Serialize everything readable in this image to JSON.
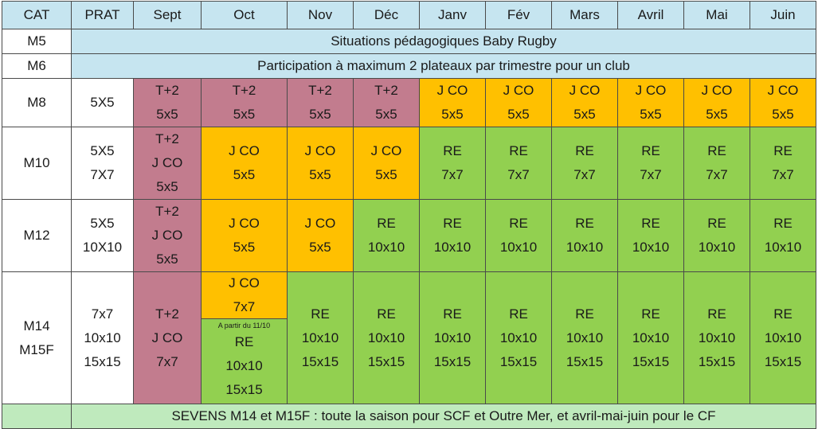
{
  "headers": [
    "CAT",
    "PRAT",
    "Sept",
    "Oct",
    "Nov",
    "Déc",
    "Janv",
    "Fév",
    "Mars",
    "Avril",
    "Mai",
    "Juin"
  ],
  "rows": {
    "m5": {
      "cat": "M5",
      "span_text": "Situations pédagogiques Baby Rugby"
    },
    "m6": {
      "cat": "M6",
      "span_text": "Participation à maximum 2 plateaux par trimestre pour un club"
    },
    "m8": {
      "cat": "M8",
      "prat": [
        "5X5"
      ],
      "months": [
        [
          "T+2",
          "5x5"
        ],
        [
          "T+2",
          "5x5"
        ],
        [
          "T+2",
          "5x5"
        ],
        [
          "T+2",
          "5x5"
        ],
        [
          "J CO",
          "5x5"
        ],
        [
          "J CO",
          "5x5"
        ],
        [
          "J CO",
          "5x5"
        ],
        [
          "J CO",
          "5x5"
        ],
        [
          "J CO",
          "5x5"
        ],
        [
          "J CO",
          "5x5"
        ]
      ]
    },
    "m10": {
      "cat": "M10",
      "prat": [
        "5X5",
        "7X7"
      ],
      "months": [
        [
          "T+2",
          "J CO",
          "5x5"
        ],
        [
          "J CO",
          "5x5"
        ],
        [
          "J CO",
          "5x5"
        ],
        [
          "J CO",
          "5x5"
        ],
        [
          "RE",
          "7x7"
        ],
        [
          "RE",
          "7x7"
        ],
        [
          "RE",
          "7x7"
        ],
        [
          "RE",
          "7x7"
        ],
        [
          "RE",
          "7x7"
        ],
        [
          "RE",
          "7x7"
        ]
      ]
    },
    "m12": {
      "cat": "M12",
      "prat": [
        "5X5",
        "10X10"
      ],
      "months": [
        [
          "T+2",
          "J CO",
          "5x5"
        ],
        [
          "J CO",
          "5x5"
        ],
        [
          "J CO",
          "5x5"
        ],
        [
          "RE",
          "10x10"
        ],
        [
          "RE",
          "10x10"
        ],
        [
          "RE",
          "10x10"
        ],
        [
          "RE",
          "10x10"
        ],
        [
          "RE",
          "10x10"
        ],
        [
          "RE",
          "10x10"
        ],
        [
          "RE",
          "10x10"
        ]
      ]
    },
    "m14": {
      "cat": [
        "M14",
        "M15F"
      ],
      "prat": [
        "7x7",
        "10x10",
        "15x15"
      ],
      "sept": [
        "T+2",
        "J CO",
        "7x7"
      ],
      "oct_top": [
        "J CO",
        "7x7"
      ],
      "oct_note": "A partir du 11/10",
      "oct_bottom": [
        "RE",
        "10x10",
        "15x15"
      ],
      "months": [
        [
          "RE",
          "10x10",
          "15x15"
        ],
        [
          "RE",
          "10x10",
          "15x15"
        ],
        [
          "RE",
          "10x10",
          "15x15"
        ],
        [
          "RE",
          "10x10",
          "15x15"
        ],
        [
          "RE",
          "10x10",
          "15x15"
        ],
        [
          "RE",
          "10x10",
          "15x15"
        ],
        [
          "RE",
          "10x10",
          "15x15"
        ],
        [
          "RE",
          "10x10",
          "15x15"
        ]
      ]
    },
    "sevens": {
      "text": "SEVENS M14 et M15F : toute la saison pour SCF et Outre Mer, et avril-mai-juin pour le CF"
    }
  },
  "colors": {
    "header_bg": "#c6e5f0",
    "tplus2": "#c27c8e",
    "jco": "#ffc000",
    "re": "#92d050",
    "sevens_bg": "#bfeabd"
  }
}
